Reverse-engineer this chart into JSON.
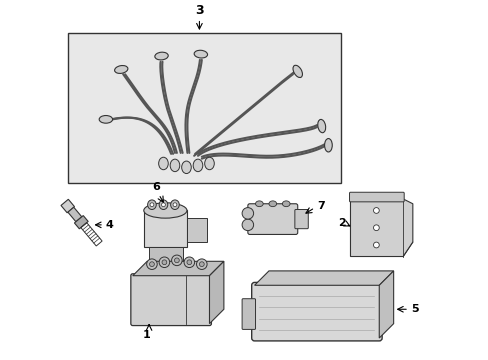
{
  "background_color": "#ffffff",
  "fig_width": 4.89,
  "fig_height": 3.6,
  "dpi": 100,
  "line_color": "#333333",
  "label_color": "#000000",
  "arrow_color": "#000000",
  "box_bg": "#e8e8e8",
  "comp_fill": "#e0e0e0",
  "comp_edge": "#333333"
}
